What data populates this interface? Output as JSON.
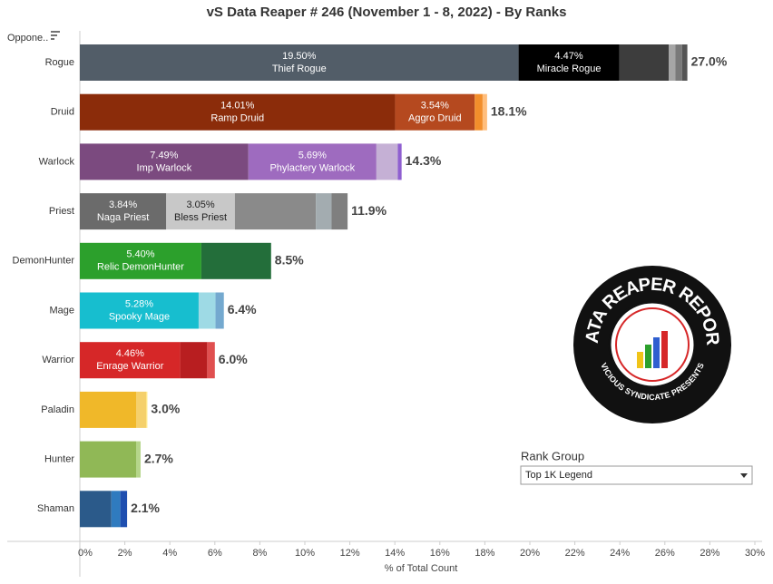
{
  "chart_data": {
    "type": "stacked-bar",
    "orientation": "horizontal",
    "title": "vS Data Reaper #  246 (November 1 - 8, 2022) - By Ranks",
    "sort_label": "Oppone..",
    "xlabel": "% of Total Count",
    "xlim": [
      0,
      30
    ],
    "xticks": [
      {
        "value": 0,
        "label": "0%"
      },
      {
        "value": 2,
        "label": "2%"
      },
      {
        "value": 4,
        "label": "4%"
      },
      {
        "value": 6,
        "label": "6%"
      },
      {
        "value": 8,
        "label": "8%"
      },
      {
        "value": 10,
        "label": "10%"
      },
      {
        "value": 12,
        "label": "12%"
      },
      {
        "value": 14,
        "label": "14%"
      },
      {
        "value": 16,
        "label": "16%"
      },
      {
        "value": 18,
        "label": "18%"
      },
      {
        "value": 20,
        "label": "20%"
      },
      {
        "value": 22,
        "label": "22%"
      },
      {
        "value": 24,
        "label": "24%"
      },
      {
        "value": 26,
        "label": "26%"
      },
      {
        "value": 28,
        "label": "28%"
      },
      {
        "value": 30,
        "label": "30%"
      }
    ],
    "categories": [
      "Rogue",
      "Druid",
      "Warlock",
      "Priest",
      "DemonHunter",
      "Mage",
      "Warrior",
      "Paladin",
      "Hunter",
      "Shaman"
    ],
    "totals": [
      27.0,
      18.1,
      14.3,
      11.9,
      8.5,
      6.4,
      6.0,
      3.0,
      2.7,
      2.1
    ],
    "total_labels": [
      "27.0%",
      "18.1%",
      "14.3%",
      "11.9%",
      "8.5%",
      "6.4%",
      "6.0%",
      "3.0%",
      "2.7%",
      "2.1%"
    ],
    "segments": [
      [
        {
          "name": "Thief Rogue",
          "value": 19.5,
          "value_label": "19.50%",
          "color": "#525d68"
        },
        {
          "name": "Miracle Rogue",
          "value": 4.47,
          "value_label": "4.47%",
          "color": "#000000"
        },
        {
          "value": 2.2,
          "color": "#3d3d3d"
        },
        {
          "value": 0.3,
          "color": "#a6a6a6"
        },
        {
          "value": 0.3,
          "color": "#7a7a7a"
        },
        {
          "value": 0.23,
          "color": "#555555"
        }
      ],
      [
        {
          "name": "Ramp Druid",
          "value": 14.01,
          "value_label": "14.01%",
          "color": "#8b2c0a"
        },
        {
          "name": "Aggro Druid",
          "value": 3.54,
          "value_label": "3.54%",
          "color": "#b5491f"
        },
        {
          "value": 0.35,
          "color": "#f28e2b"
        },
        {
          "value": 0.2,
          "color": "#ffbe7d"
        }
      ],
      [
        {
          "name": "Imp Warlock",
          "value": 7.49,
          "value_label": "7.49%",
          "color": "#7b4a7f"
        },
        {
          "name": "Phylactery Warlock",
          "value": 5.69,
          "value_label": "5.69%",
          "color": "#9e6bbf"
        },
        {
          "value": 0.95,
          "color": "#c5b0d5"
        },
        {
          "value": 0.17,
          "color": "#8f5fd0"
        }
      ],
      [
        {
          "name": "Naga Priest",
          "value": 3.84,
          "value_label": "3.84%",
          "color": "#6b6b6b"
        },
        {
          "name": "Bless Priest",
          "value": 3.05,
          "value_label": "3.05%",
          "color": "#c8c8c8"
        },
        {
          "value": 3.6,
          "color": "#8a8a8a"
        },
        {
          "value": 0.7,
          "color": "#a3acb0"
        },
        {
          "value": 0.71,
          "color": "#7f7f7f"
        }
      ],
      [
        {
          "name": "Relic DemonHunter",
          "value": 5.4,
          "value_label": "5.40%",
          "color": "#2ca02c"
        },
        {
          "value": 3.1,
          "color": "#236e3a"
        }
      ],
      [
        {
          "name": "Spooky Mage",
          "value": 5.28,
          "value_label": "5.28%",
          "color": "#17becf"
        },
        {
          "value": 0.75,
          "color": "#9edae5"
        },
        {
          "value": 0.37,
          "color": "#74a9cf"
        }
      ],
      [
        {
          "name": "Enrage Warrior",
          "value": 4.46,
          "value_label": "4.46%",
          "color": "#d62728"
        },
        {
          "value": 1.2,
          "color": "#b81e20"
        },
        {
          "value": 0.34,
          "color": "#e05050"
        }
      ],
      [
        {
          "value": 2.5,
          "color": "#f0b829"
        },
        {
          "value": 0.45,
          "color": "#f5d06b"
        },
        {
          "value": 0.05,
          "color": "#ffe680"
        }
      ],
      [
        {
          "value": 2.5,
          "color": "#90b856"
        },
        {
          "value": 0.2,
          "color": "#b5d58a"
        }
      ],
      [
        {
          "value": 1.4,
          "color": "#2b5a8a"
        },
        {
          "value": 0.4,
          "color": "#2f7bbf"
        },
        {
          "value": 0.3,
          "color": "#1f4fb0"
        }
      ]
    ]
  },
  "filter": {
    "label": "Rank Group",
    "value": "Top 1K Legend"
  },
  "logo": {
    "title": "DATA REAPER REPORT",
    "subtitle": "VICIOUS SYNDICATE PRESENTS"
  }
}
